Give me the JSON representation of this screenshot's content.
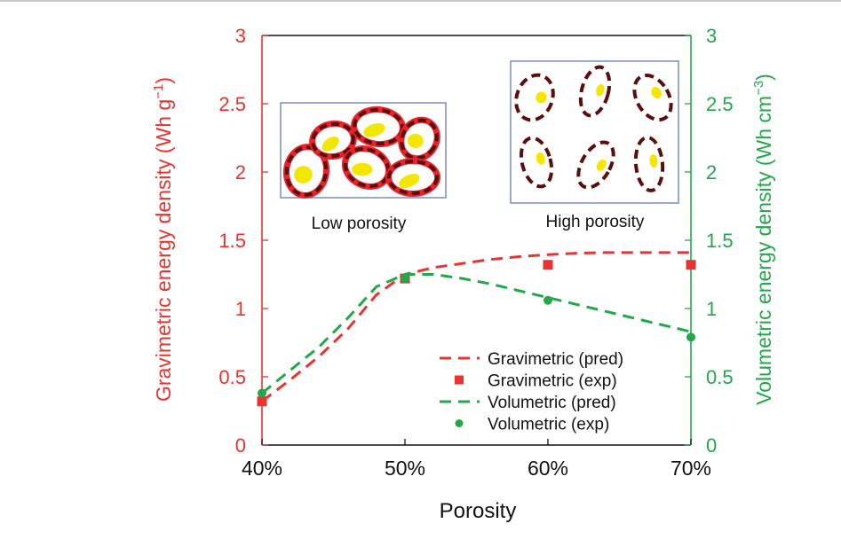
{
  "chart_data": {
    "type": "line",
    "xlabel": "Porosity",
    "ylabel_left": "Gravimetric energy density (Wh g",
    "ylabel_left_sup": "−1",
    "ylabel_left_close": ")",
    "ylabel_right": "Volumetric energy density (Wh cm",
    "ylabel_right_sup": "−3",
    "ylabel_right_close": ")",
    "x_ticks": [
      {
        "value": 40,
        "label": "40%"
      },
      {
        "value": 50,
        "label": "50%"
      },
      {
        "value": 60,
        "label": "60%"
      },
      {
        "value": 70,
        "label": "70%"
      }
    ],
    "y_ticks_left": [
      {
        "value": 0,
        "label": "0"
      },
      {
        "value": 0.5,
        "label": "0.5"
      },
      {
        "value": 1,
        "label": "1"
      },
      {
        "value": 1.5,
        "label": "1.5"
      },
      {
        "value": 2,
        "label": "2"
      },
      {
        "value": 2.5,
        "label": "2.5"
      },
      {
        "value": 3,
        "label": "3"
      }
    ],
    "y_ticks_right": [
      {
        "value": 0,
        "label": "0"
      },
      {
        "value": 0.5,
        "label": "0.5"
      },
      {
        "value": 1,
        "label": "1"
      },
      {
        "value": 1.5,
        "label": "1.5"
      },
      {
        "value": 2,
        "label": "2"
      },
      {
        "value": 2.5,
        "label": "2.5"
      },
      {
        "value": 3,
        "label": "3"
      }
    ],
    "xlim": [
      40,
      70
    ],
    "ylim_left": [
      0,
      3
    ],
    "ylim_right": [
      0,
      3
    ],
    "grid": false,
    "legend_position": "bottom-right",
    "colors": {
      "gravimetric": "#e8332e",
      "volumetric": "#22a84a"
    },
    "series": [
      {
        "name": "Gravimetric (pred)",
        "style": "dashed-line",
        "axis": "left",
        "color": "#e8332e",
        "x": [
          40,
          42,
          44,
          46,
          48,
          50,
          52,
          54,
          56,
          58,
          60,
          62,
          64,
          66,
          68,
          70
        ],
        "y": [
          0.32,
          0.48,
          0.65,
          0.85,
          1.1,
          1.25,
          1.3,
          1.33,
          1.36,
          1.38,
          1.395,
          1.405,
          1.41,
          1.41,
          1.41,
          1.41
        ]
      },
      {
        "name": "Gravimetric (exp)",
        "style": "square-marker",
        "axis": "left",
        "color": "#e8332e",
        "x": [
          40,
          50,
          60,
          70
        ],
        "y": [
          0.32,
          1.22,
          1.32,
          1.32
        ]
      },
      {
        "name": "Volumetric (pred)",
        "style": "dashed-line",
        "axis": "right",
        "color": "#22a84a",
        "x": [
          40,
          42,
          44,
          46,
          48,
          50,
          52,
          54,
          56,
          58,
          60,
          62,
          64,
          66,
          68,
          70
        ],
        "y": [
          0.38,
          0.55,
          0.72,
          0.93,
          1.16,
          1.25,
          1.25,
          1.22,
          1.18,
          1.13,
          1.08,
          1.03,
          0.98,
          0.93,
          0.88,
          0.83
        ]
      },
      {
        "name": "Volumetric (exp)",
        "style": "circle-marker",
        "axis": "right",
        "color": "#22a84a",
        "x": [
          40,
          50,
          60,
          70
        ],
        "y": [
          0.38,
          1.22,
          1.06,
          0.79
        ]
      }
    ],
    "insets": [
      {
        "label": "Low porosity",
        "particle_colors": [
          "#e8232a",
          "#5a0f0f",
          "#f3e600"
        ]
      },
      {
        "label": "High porosity",
        "particle_colors": [
          "#5a0f0f",
          "#f3e600"
        ]
      }
    ]
  }
}
